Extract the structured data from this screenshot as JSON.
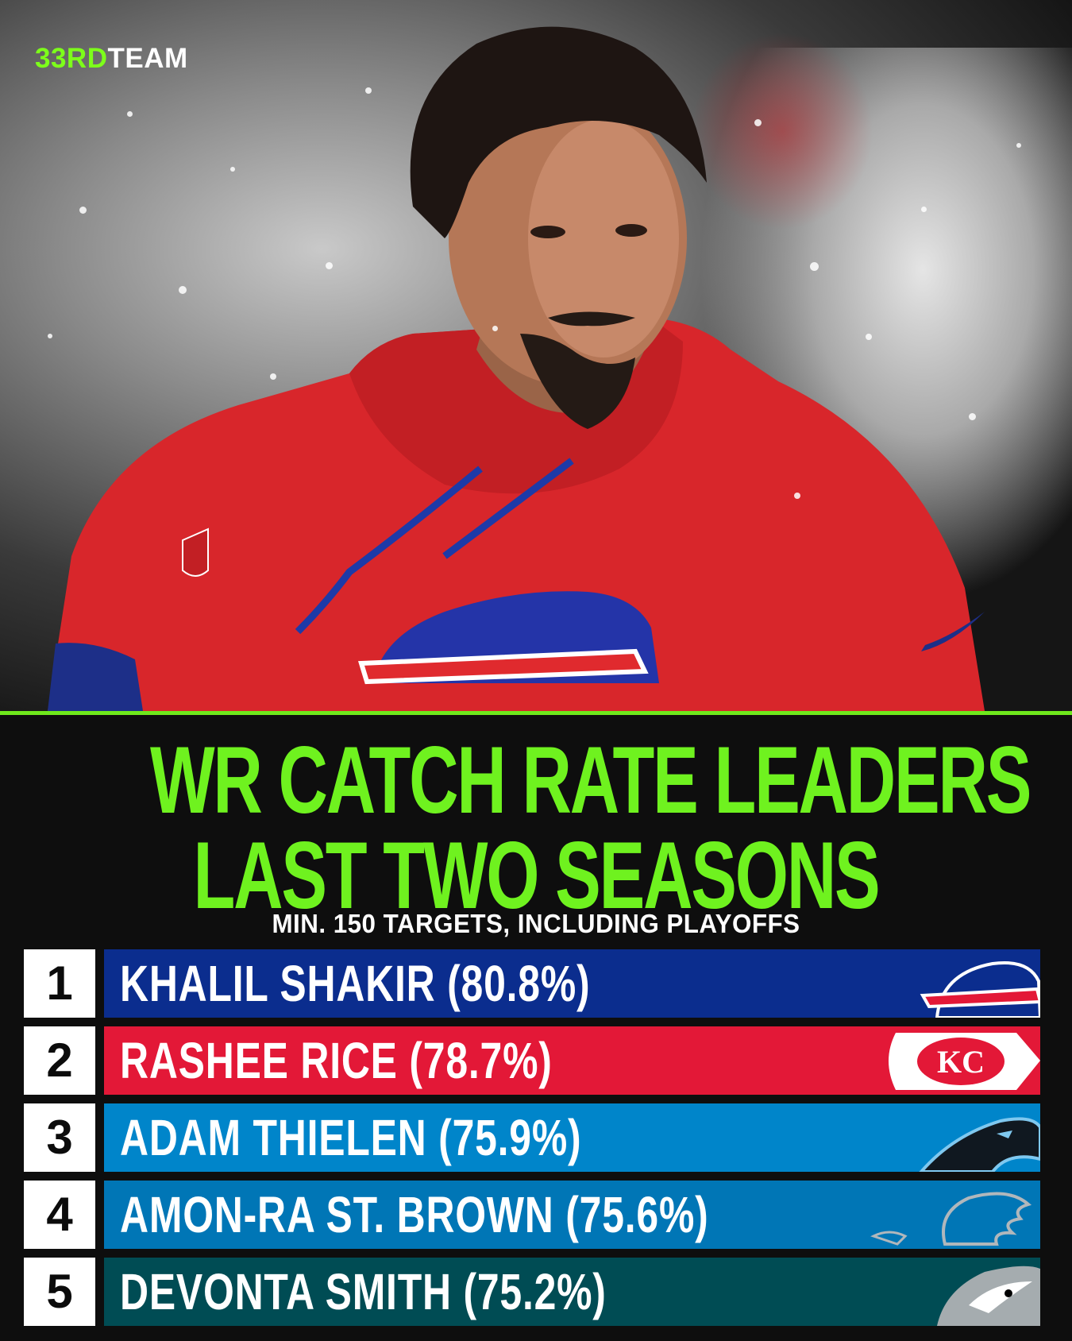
{
  "brand": {
    "part1": "33RD",
    "part2": "TEAM"
  },
  "title": {
    "line1": "WR CATCH RATE LEADERS",
    "line2": "LAST TWO SEASONS"
  },
  "subtitle": "MIN. 150 TARGETS, INCLUDING PLAYOFFS",
  "colors": {
    "accent_green": "#6ff21f",
    "bills_blue": "#0b2d8e",
    "chiefs_red": "#e31837",
    "panthers_blue": "#0085ca",
    "lions_blue": "#0076b6",
    "eagles_green": "#004c54"
  },
  "leaders": [
    {
      "rank": "1",
      "label": "KHALIL SHAKIR (80.8%)",
      "team_logo": "bills-logo"
    },
    {
      "rank": "2",
      "label": "RASHEE RICE (78.7%)",
      "team_logo": "chiefs-logo"
    },
    {
      "rank": "3",
      "label": "ADAM THIELEN (75.9%)",
      "team_logo": "panthers-logo"
    },
    {
      "rank": "4",
      "label": "AMON-RA ST. BROWN (75.6%)",
      "team_logo": "lions-logo"
    },
    {
      "rank": "5",
      "label": "DEVONTA SMITH (75.2%)",
      "team_logo": "eagles-logo"
    }
  ]
}
